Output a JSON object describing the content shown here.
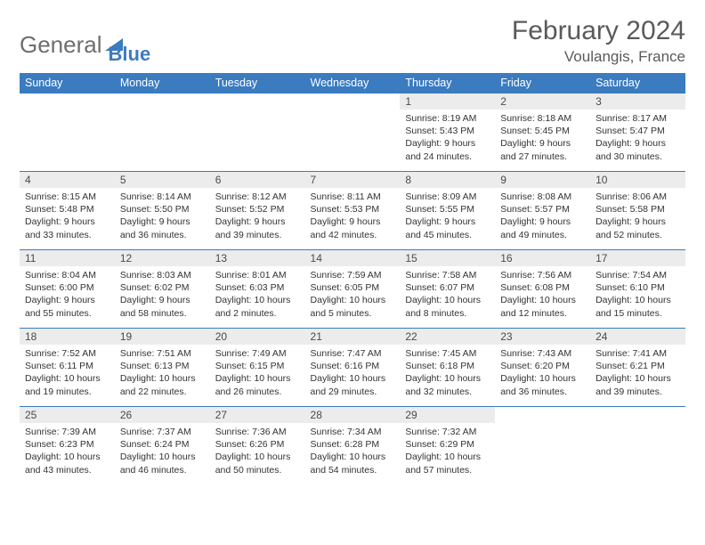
{
  "logo": {
    "part1": "General",
    "part2": "Blue"
  },
  "title": "February 2024",
  "location": "Voulangis, France",
  "weekdays": [
    "Sunday",
    "Monday",
    "Tuesday",
    "Wednesday",
    "Thursday",
    "Friday",
    "Saturday"
  ],
  "colors": {
    "header_bg": "#3b7bbf",
    "header_text": "#ffffff",
    "rule": "#3b7bbf",
    "daynum_bg": "#ececec",
    "body_text": "#333333",
    "title_text": "#5a5a5a",
    "logo_gray": "#6d6e70",
    "logo_blue": "#3b7bbf",
    "page_bg": "#ffffff"
  },
  "typography": {
    "month_fontsize": 30,
    "location_fontsize": 17,
    "weekday_fontsize": 12.5,
    "daynum_fontsize": 12,
    "payload_fontsize": 10.5
  },
  "grid": {
    "first_weekday_index": 4,
    "days_in_month": 29,
    "columns": 7,
    "rows": 5
  },
  "days": [
    {
      "n": 1,
      "sunrise": "8:19 AM",
      "sunset": "5:43 PM",
      "daylight": "9 hours and 24 minutes."
    },
    {
      "n": 2,
      "sunrise": "8:18 AM",
      "sunset": "5:45 PM",
      "daylight": "9 hours and 27 minutes."
    },
    {
      "n": 3,
      "sunrise": "8:17 AM",
      "sunset": "5:47 PM",
      "daylight": "9 hours and 30 minutes."
    },
    {
      "n": 4,
      "sunrise": "8:15 AM",
      "sunset": "5:48 PM",
      "daylight": "9 hours and 33 minutes."
    },
    {
      "n": 5,
      "sunrise": "8:14 AM",
      "sunset": "5:50 PM",
      "daylight": "9 hours and 36 minutes."
    },
    {
      "n": 6,
      "sunrise": "8:12 AM",
      "sunset": "5:52 PM",
      "daylight": "9 hours and 39 minutes."
    },
    {
      "n": 7,
      "sunrise": "8:11 AM",
      "sunset": "5:53 PM",
      "daylight": "9 hours and 42 minutes."
    },
    {
      "n": 8,
      "sunrise": "8:09 AM",
      "sunset": "5:55 PM",
      "daylight": "9 hours and 45 minutes."
    },
    {
      "n": 9,
      "sunrise": "8:08 AM",
      "sunset": "5:57 PM",
      "daylight": "9 hours and 49 minutes."
    },
    {
      "n": 10,
      "sunrise": "8:06 AM",
      "sunset": "5:58 PM",
      "daylight": "9 hours and 52 minutes."
    },
    {
      "n": 11,
      "sunrise": "8:04 AM",
      "sunset": "6:00 PM",
      "daylight": "9 hours and 55 minutes."
    },
    {
      "n": 12,
      "sunrise": "8:03 AM",
      "sunset": "6:02 PM",
      "daylight": "9 hours and 58 minutes."
    },
    {
      "n": 13,
      "sunrise": "8:01 AM",
      "sunset": "6:03 PM",
      "daylight": "10 hours and 2 minutes."
    },
    {
      "n": 14,
      "sunrise": "7:59 AM",
      "sunset": "6:05 PM",
      "daylight": "10 hours and 5 minutes."
    },
    {
      "n": 15,
      "sunrise": "7:58 AM",
      "sunset": "6:07 PM",
      "daylight": "10 hours and 8 minutes."
    },
    {
      "n": 16,
      "sunrise": "7:56 AM",
      "sunset": "6:08 PM",
      "daylight": "10 hours and 12 minutes."
    },
    {
      "n": 17,
      "sunrise": "7:54 AM",
      "sunset": "6:10 PM",
      "daylight": "10 hours and 15 minutes."
    },
    {
      "n": 18,
      "sunrise": "7:52 AM",
      "sunset": "6:11 PM",
      "daylight": "10 hours and 19 minutes."
    },
    {
      "n": 19,
      "sunrise": "7:51 AM",
      "sunset": "6:13 PM",
      "daylight": "10 hours and 22 minutes."
    },
    {
      "n": 20,
      "sunrise": "7:49 AM",
      "sunset": "6:15 PM",
      "daylight": "10 hours and 26 minutes."
    },
    {
      "n": 21,
      "sunrise": "7:47 AM",
      "sunset": "6:16 PM",
      "daylight": "10 hours and 29 minutes."
    },
    {
      "n": 22,
      "sunrise": "7:45 AM",
      "sunset": "6:18 PM",
      "daylight": "10 hours and 32 minutes."
    },
    {
      "n": 23,
      "sunrise": "7:43 AM",
      "sunset": "6:20 PM",
      "daylight": "10 hours and 36 minutes."
    },
    {
      "n": 24,
      "sunrise": "7:41 AM",
      "sunset": "6:21 PM",
      "daylight": "10 hours and 39 minutes."
    },
    {
      "n": 25,
      "sunrise": "7:39 AM",
      "sunset": "6:23 PM",
      "daylight": "10 hours and 43 minutes."
    },
    {
      "n": 26,
      "sunrise": "7:37 AM",
      "sunset": "6:24 PM",
      "daylight": "10 hours and 46 minutes."
    },
    {
      "n": 27,
      "sunrise": "7:36 AM",
      "sunset": "6:26 PM",
      "daylight": "10 hours and 50 minutes."
    },
    {
      "n": 28,
      "sunrise": "7:34 AM",
      "sunset": "6:28 PM",
      "daylight": "10 hours and 54 minutes."
    },
    {
      "n": 29,
      "sunrise": "7:32 AM",
      "sunset": "6:29 PM",
      "daylight": "10 hours and 57 minutes."
    }
  ],
  "labels": {
    "sunrise": "Sunrise:",
    "sunset": "Sunset:",
    "daylight": "Daylight:"
  }
}
